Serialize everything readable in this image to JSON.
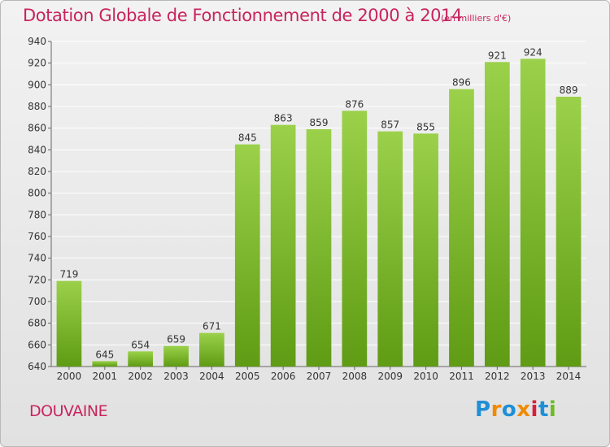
{
  "header": {
    "title": "Dotation Globale de Fonctionnement de 2000 à 2014",
    "subtitle": "(en milliers d'€)"
  },
  "footer": {
    "place": "DOUVAINE",
    "logo_text": "Proxiti"
  },
  "colors": {
    "title": "#c8245e",
    "bar_light": "#9bd14a",
    "bar_dark": "#5f9b14",
    "grid": "#ffffff",
    "logo_letters": [
      "#1f8fd6",
      "#f08a00",
      "#1f8fd6",
      "#f08a00",
      "#d61f3c",
      "#1f8fd6",
      "#6dbb22"
    ]
  },
  "chart_data": {
    "type": "bar",
    "categories": [
      "2000",
      "2001",
      "2002",
      "2003",
      "2004",
      "2005",
      "2006",
      "2007",
      "2008",
      "2009",
      "2010",
      "2011",
      "2012",
      "2013",
      "2014"
    ],
    "values": [
      719,
      645,
      654,
      659,
      671,
      845,
      863,
      859,
      876,
      857,
      855,
      896,
      921,
      924,
      889
    ],
    "ylim": [
      640,
      940
    ],
    "yticks": [
      640,
      660,
      680,
      700,
      720,
      740,
      760,
      780,
      800,
      820,
      840,
      860,
      880,
      900,
      920,
      940
    ],
    "grid": true,
    "data_labels": true
  }
}
